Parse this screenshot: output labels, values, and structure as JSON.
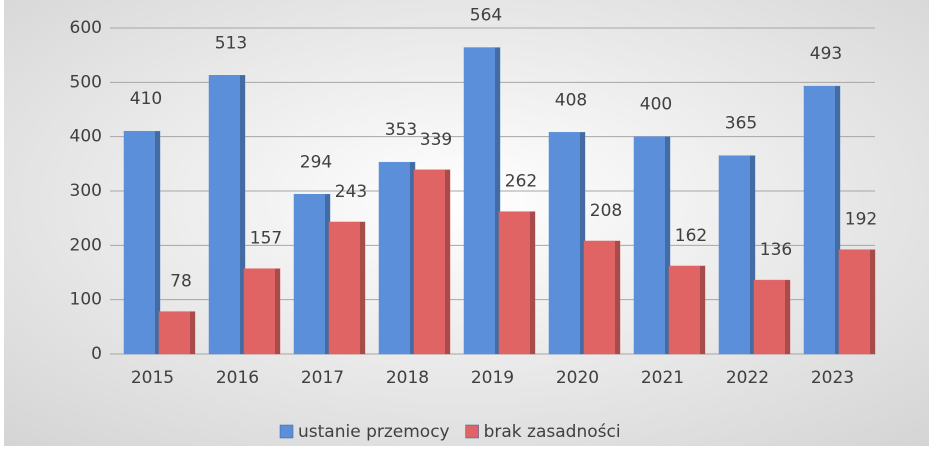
{
  "chart_data": {
    "type": "bar",
    "categories": [
      "2015",
      "2016",
      "2017",
      "2018",
      "2019",
      "2020",
      "2021",
      "2022",
      "2023"
    ],
    "series": [
      {
        "name": "ustanie przemocy",
        "color": "#5b8fd9",
        "values": [
          410,
          513,
          294,
          353,
          564,
          408,
          400,
          365,
          493
        ]
      },
      {
        "name": "brak zasadności",
        "color": "#e06464",
        "values": [
          78,
          157,
          243,
          339,
          262,
          208,
          162,
          136,
          192
        ]
      }
    ],
    "ylim": [
      0,
      600
    ],
    "yticks": [
      0,
      100,
      200,
      300,
      400,
      500,
      600
    ],
    "grid": true,
    "legend": "bottom"
  }
}
